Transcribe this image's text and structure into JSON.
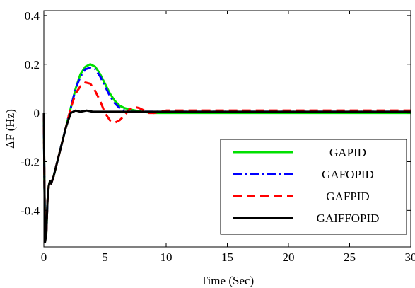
{
  "chart_data": {
    "type": "line",
    "title": "",
    "xlabel": "Time (Sec)",
    "ylabel": "ΔF (Hz)",
    "xlim": [
      0,
      30
    ],
    "ylim": [
      -0.55,
      0.42
    ],
    "xticks": [
      "0",
      "5",
      "10",
      "15",
      "20",
      "25",
      "30"
    ],
    "yticks": [
      "0.4",
      "0.2",
      "0",
      "-0.2",
      "-0.4"
    ],
    "xtick_values": [
      0,
      5,
      10,
      15,
      20,
      25,
      30
    ],
    "ytick_values": [
      0.4,
      0.2,
      0,
      -0.2,
      -0.4
    ],
    "grid": false,
    "legend_position": "bottom-right",
    "series": [
      {
        "name": "GAPID",
        "color": "#00e000",
        "style": "solid",
        "x": [
          0,
          0.05,
          0.1,
          0.2,
          0.3,
          0.4,
          0.5,
          0.6,
          0.8,
          1.0,
          1.4,
          1.8,
          2.2,
          2.6,
          3.0,
          3.4,
          3.8,
          4.2,
          4.6,
          5.0,
          5.4,
          5.8,
          6.2,
          6.6,
          7.0,
          7.5,
          8.0,
          9.0,
          10.0,
          12.0,
          15.0,
          20.0,
          25.0,
          30.0
        ],
        "y": [
          0,
          -0.3,
          -0.52,
          -0.5,
          -0.36,
          -0.3,
          -0.28,
          -0.29,
          -0.26,
          -0.22,
          -0.14,
          -0.06,
          0.02,
          0.1,
          0.16,
          0.19,
          0.2,
          0.19,
          0.16,
          0.12,
          0.08,
          0.05,
          0.03,
          0.02,
          0.015,
          0.01,
          0.005,
          0.0,
          0.0,
          0.0,
          0.0,
          0.0,
          0.0,
          0.0
        ]
      },
      {
        "name": "GAFOPID",
        "color": "#0000ff",
        "style": "dashdot",
        "x": [
          0,
          0.05,
          0.1,
          0.2,
          0.3,
          0.4,
          0.5,
          0.6,
          0.8,
          1.0,
          1.4,
          1.8,
          2.2,
          2.6,
          3.0,
          3.4,
          3.8,
          4.2,
          4.6,
          5.0,
          5.4,
          5.8,
          6.2,
          6.6,
          7.0,
          7.5,
          8.0,
          9.0,
          10.0,
          15.0,
          20.0,
          25.0,
          30.0
        ],
        "y": [
          0,
          -0.3,
          -0.52,
          -0.5,
          -0.36,
          -0.3,
          -0.28,
          -0.29,
          -0.26,
          -0.22,
          -0.14,
          -0.06,
          0.02,
          0.1,
          0.15,
          0.18,
          0.185,
          0.18,
          0.15,
          0.11,
          0.07,
          0.04,
          0.02,
          0.01,
          0.005,
          0.005,
          0.005,
          0.005,
          0.005,
          0.005,
          0.005,
          0.005,
          0.005
        ]
      },
      {
        "name": "GAFPID",
        "color": "#ff0000",
        "style": "dashed",
        "x": [
          0,
          0.05,
          0.1,
          0.2,
          0.3,
          0.4,
          0.5,
          0.6,
          0.8,
          1.0,
          1.4,
          1.8,
          2.2,
          2.6,
          3.0,
          3.4,
          3.8,
          4.2,
          4.6,
          5.0,
          5.4,
          5.8,
          6.2,
          6.6,
          7.0,
          7.4,
          7.8,
          8.2,
          8.6,
          9.0,
          9.5,
          10.0,
          11.0,
          12.0,
          15.0,
          20.0,
          25.0,
          30.0
        ],
        "y": [
          0,
          -0.3,
          -0.52,
          -0.5,
          -0.36,
          -0.3,
          -0.28,
          -0.29,
          -0.26,
          -0.22,
          -0.14,
          -0.06,
          0.02,
          0.08,
          0.11,
          0.125,
          0.12,
          0.09,
          0.05,
          0.0,
          -0.03,
          -0.04,
          -0.03,
          -0.01,
          0.015,
          0.025,
          0.02,
          0.01,
          0.0,
          0.0,
          0.005,
          0.01,
          0.01,
          0.01,
          0.01,
          0.01,
          0.01,
          0.01
        ]
      },
      {
        "name": "GAIFFOPID",
        "color": "#000000",
        "style": "solid",
        "x": [
          0,
          0.05,
          0.1,
          0.2,
          0.3,
          0.4,
          0.5,
          0.6,
          0.8,
          1.0,
          1.4,
          1.8,
          2.2,
          2.6,
          3.0,
          3.5,
          4.0,
          5.0,
          6.0,
          8.0,
          10.0,
          15.0,
          20.0,
          25.0,
          30.0
        ],
        "y": [
          0,
          -0.3,
          -0.53,
          -0.5,
          -0.36,
          -0.3,
          -0.28,
          -0.29,
          -0.26,
          -0.22,
          -0.14,
          -0.06,
          0.0,
          0.01,
          0.005,
          0.01,
          0.005,
          0.005,
          0.005,
          0.005,
          0.005,
          0.005,
          0.005,
          0.005,
          0.005
        ]
      }
    ]
  }
}
